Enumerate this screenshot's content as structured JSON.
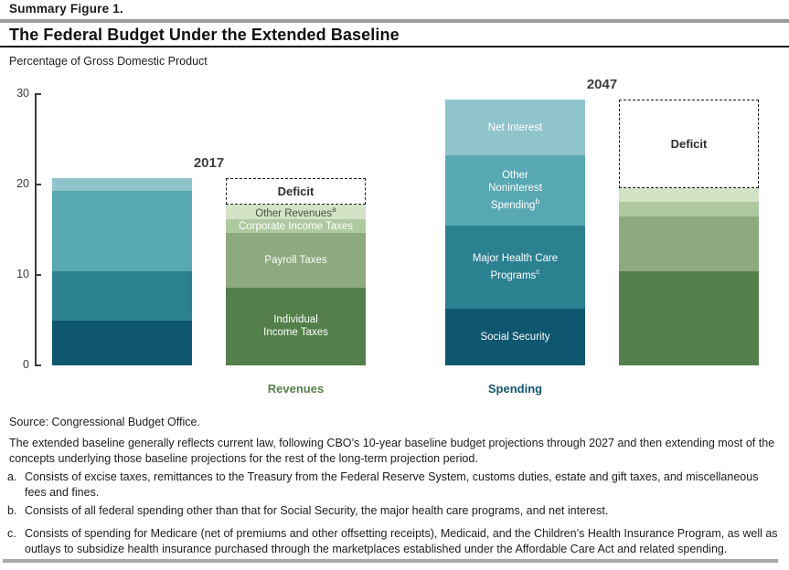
{
  "header": {
    "figure_label": "Summary Figure 1.",
    "title": "The Federal Budget Under the Extended Baseline"
  },
  "chart_data": {
    "type": "stacked-bar",
    "title": "The Federal Budget Under the Extended Baseline",
    "ylabel": "Percentage of Gross Domestic Product",
    "ylim": [
      0,
      30
    ],
    "yticks": [
      0,
      10,
      20,
      30
    ],
    "grid": false,
    "groups": [
      {
        "year": "2017",
        "spending": {
          "total": 20.7,
          "show_labels": false,
          "segments": [
            {
              "name": "Social Security",
              "value": 4.9,
              "color": "#0F566F"
            },
            {
              "name": "Major Health Care Programs",
              "value": 5.5,
              "color": "#2C8191"
            },
            {
              "name": "Other Noninterest Spending",
              "value": 8.9,
              "color": "#58A8B3"
            },
            {
              "name": "Net Interest",
              "value": 1.4,
              "color": "#8FC4CA"
            }
          ]
        },
        "revenues": {
          "total": 17.8,
          "show_labels": true,
          "segments": [
            {
              "name": "Individual Income Taxes",
              "value": 8.6,
              "color": "#53804A",
              "lines": [
                "Individual",
                "Income Taxes"
              ],
              "text_color": "#FFFFFF"
            },
            {
              "name": "Payroll Taxes",
              "value": 6.0,
              "color": "#8CAA7E",
              "lines": [
                "Payroll Taxes"
              ],
              "text_color": "#FFFFFF"
            },
            {
              "name": "Corporate Income Taxes",
              "value": 1.6,
              "color": "#AEC99F",
              "lines": [
                "Corporate Income Taxes"
              ],
              "text_color": "#FFFFFF"
            },
            {
              "name": "Other Revenues",
              "value": 1.6,
              "color": "#D3E3C6",
              "lines": [
                "Other Revenues"
              ],
              "sup": "a",
              "text_color": "#47533F"
            }
          ]
        },
        "deficit": {
          "label": "Deficit",
          "value": 2.9
        }
      },
      {
        "year": "2047",
        "spending": {
          "total": 29.4,
          "show_labels": true,
          "segments": [
            {
              "name": "Social Security",
              "value": 6.3,
              "color": "#0F566F",
              "lines": [
                "Social Security"
              ],
              "text_color": "#FFFFFF"
            },
            {
              "name": "Major Health Care Programs",
              "value": 9.2,
              "color": "#2C8191",
              "lines": [
                "Major Health Care",
                "Programs"
              ],
              "sup": "c",
              "text_color": "#FFFFFF"
            },
            {
              "name": "Other Noninterest Spending",
              "value": 7.7,
              "color": "#58A8B3",
              "lines": [
                "Other",
                "Noninterest",
                "Spending"
              ],
              "sup": "b",
              "text_color": "#FFFFFF"
            },
            {
              "name": "Net Interest",
              "value": 6.2,
              "color": "#8FC4CA",
              "lines": [
                "Net Interest"
              ],
              "text_color": "#FFFFFF"
            }
          ]
        },
        "revenues": {
          "total": 19.6,
          "show_labels": false,
          "segments": [
            {
              "name": "Individual Income Taxes",
              "value": 10.4,
              "color": "#53804A"
            },
            {
              "name": "Payroll Taxes",
              "value": 6.1,
              "color": "#8CAA7E"
            },
            {
              "name": "Corporate Income Taxes",
              "value": 1.6,
              "color": "#AEC99F"
            },
            {
              "name": "Other Revenues",
              "value": 1.5,
              "color": "#D3E3C6"
            }
          ]
        },
        "deficit": {
          "label": "Deficit",
          "value": 9.8
        }
      }
    ],
    "axis_labels": [
      {
        "text": "Revenues",
        "color": "#56804A",
        "bar_index": 1
      },
      {
        "text": "Spending",
        "color": "#14566F",
        "bar_index": 2
      }
    ],
    "legend_position": "in-bar-labels"
  },
  "footer": {
    "source": "Source: Congressional Budget Office.",
    "note": "The extended baseline generally reflects current law, following CBO’s 10-year baseline budget projections through 2027 and then extending most of the concepts underlying those baseline projections for the rest of the long-term projection period.",
    "footnotes": [
      {
        "marker": "a.",
        "text": "Consists of excise taxes, remittances to the Treasury from the Federal Reserve System, customs duties, estate and gift taxes, and miscellaneous fees and fines."
      },
      {
        "marker": "b.",
        "text": "Consists of all federal spending other than that for Social Security, the major health care programs, and net interest."
      },
      {
        "marker": "c.",
        "text": "Consists of spending for Medicare (net of premiums and other offsetting receipts), Medicaid, and the Children’s Health Insurance Program, as well as outlays to subsidize health insurance purchased through the marketplaces established under the Affordable Care Act and related spending."
      }
    ]
  }
}
